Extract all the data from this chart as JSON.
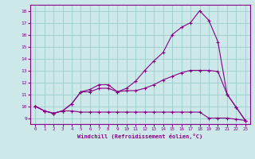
{
  "xlabel": "Windchill (Refroidissement éolien,°C)",
  "bg_color": "#cce8e8",
  "grid_color": "#99cccc",
  "line_color": "#880088",
  "x_values": [
    0,
    1,
    2,
    3,
    4,
    5,
    6,
    7,
    8,
    9,
    10,
    11,
    12,
    13,
    14,
    15,
    16,
    17,
    18,
    19,
    20,
    21,
    22,
    23
  ],
  "line1": [
    10.0,
    9.6,
    9.4,
    9.6,
    9.6,
    9.5,
    9.5,
    9.5,
    9.5,
    9.5,
    9.5,
    9.5,
    9.5,
    9.5,
    9.5,
    9.5,
    9.5,
    9.5,
    9.5,
    9.0,
    9.0,
    9.0,
    8.9,
    8.8
  ],
  "line2": [
    10.0,
    9.6,
    9.4,
    9.6,
    10.2,
    11.2,
    11.2,
    11.5,
    11.5,
    11.2,
    11.3,
    11.3,
    11.5,
    11.8,
    12.2,
    12.5,
    12.8,
    13.0,
    13.0,
    13.0,
    12.9,
    11.0,
    9.9,
    8.8
  ],
  "line3": [
    10.0,
    9.6,
    9.4,
    9.6,
    10.2,
    11.2,
    11.4,
    11.8,
    11.8,
    11.2,
    11.5,
    12.1,
    13.0,
    13.8,
    14.5,
    16.0,
    16.6,
    17.0,
    18.0,
    17.2,
    15.4,
    11.0,
    9.9,
    8.8
  ],
  "ylim": [
    8.5,
    18.5
  ],
  "xlim": [
    -0.5,
    23.5
  ],
  "yticks": [
    9,
    10,
    11,
    12,
    13,
    14,
    15,
    16,
    17,
    18
  ],
  "xticks": [
    0,
    1,
    2,
    3,
    4,
    5,
    6,
    7,
    8,
    9,
    10,
    11,
    12,
    13,
    14,
    15,
    16,
    17,
    18,
    19,
    20,
    21,
    22,
    23
  ]
}
